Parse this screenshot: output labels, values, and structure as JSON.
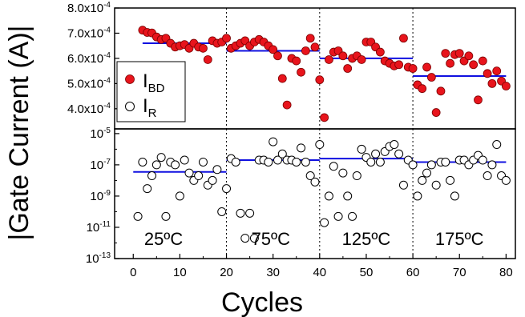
{
  "chart_data": {
    "type": "scatter",
    "xlabel": "Cycles",
    "ylabel": "|Gate Current (A)|",
    "xlim": [
      -4,
      82
    ],
    "x_ticks": [
      "0",
      "10",
      "20",
      "30",
      "40",
      "50",
      "60",
      "70",
      "80"
    ],
    "grid": false,
    "temperature_labels": [
      "25ºC",
      "75ºC",
      "125ºC",
      "175ºC"
    ],
    "dividers_x": [
      20,
      40,
      60
    ],
    "panels": [
      {
        "name": "top",
        "yscale": "linear",
        "ylim": [
          0.00032,
          0.0008
        ],
        "y_tick_labels": [
          "4.0x10",
          "5.0x10",
          "6.0x10",
          "7.0x10",
          "8.0x10"
        ],
        "y_tick_values": [
          0.0004,
          0.0005,
          0.0006,
          0.0007,
          0.0008
        ],
        "y_tick_exponent": "-4",
        "legend": {
          "position": "left",
          "entries": [
            {
              "label": "I",
              "sub": "BD",
              "marker": "filled-circle",
              "color": "#e8141c"
            },
            {
              "label": "I",
              "sub": "R",
              "marker": "open-circle",
              "color": "#000000"
            }
          ]
        },
        "series": [
          {
            "name": "I_BD",
            "marker": "filled-circle",
            "color": "#e8141c",
            "x": [
              2,
              3,
              4,
              5,
              6,
              7,
              8,
              9,
              10,
              11,
              12,
              13,
              14,
              15,
              16,
              17,
              18,
              19,
              20,
              21,
              22,
              23,
              24,
              25,
              26,
              27,
              28,
              29,
              30,
              31,
              32,
              33,
              34,
              35,
              36,
              37,
              38,
              39,
              40,
              41,
              42,
              43,
              44,
              45,
              46,
              47,
              48,
              49,
              50,
              51,
              52,
              53,
              54,
              55,
              56,
              57,
              58,
              59,
              60,
              61,
              62,
              63,
              64,
              65,
              66,
              67,
              68,
              69,
              70,
              71,
              72,
              73,
              74,
              75,
              76,
              77,
              78,
              79,
              80
            ],
            "y": [
              0.000712,
              0.000703,
              0.000701,
              0.000685,
              0.000675,
              0.00068,
              0.00066,
              0.000645,
              0.00065,
              0.000655,
              0.00064,
              0.00066,
              0.000645,
              0.00064,
              0.000595,
              0.00067,
              0.00066,
              0.000665,
              0.00068,
              0.00064,
              0.00065,
              0.00066,
              0.00067,
              0.00065,
              0.000665,
              0.000675,
              0.000665,
              0.00065,
              0.000635,
              0.00061,
              0.00052,
              0.000415,
              0.0006,
              0.00059,
              0.000545,
              0.00063,
              0.00068,
              0.000645,
              0.000515,
              0.000365,
              0.000595,
              0.000625,
              0.00063,
              0.00061,
              0.00056,
              0.0006,
              0.00061,
              0.000595,
              0.000665,
              0.000665,
              0.000645,
              0.000625,
              0.00059,
              0.00058,
              0.00057,
              0.000575,
              0.00068,
              0.000565,
              0.00056,
              0.000495,
              0.00048,
              0.000565,
              0.000525,
              0.000385,
              0.00047,
              0.00062,
              0.00058,
              0.000615,
              0.00062,
              0.00059,
              0.00061,
              0.000575,
              0.000435,
              0.00059,
              0.00054,
              0.0005,
              0.00055,
              0.00051,
              0.00049
            ]
          }
        ],
        "mean_lines": [
          {
            "x": [
              2,
              20
            ],
            "y": 0.00066
          },
          {
            "x": [
              20,
              40
            ],
            "y": 0.00063
          },
          {
            "x": [
              40,
              60
            ],
            "y": 0.0006
          },
          {
            "x": [
              60,
              80
            ],
            "y": 0.00053
          }
        ]
      },
      {
        "name": "bottom",
        "yscale": "log",
        "ylim": [
          1e-13,
          2e-05
        ],
        "y_tick_exponents": [
          "-5",
          "-7",
          "-9",
          "-11",
          "-13"
        ],
        "y_tick_values": [
          1e-05,
          1e-07,
          1e-09,
          1e-11,
          1e-13
        ],
        "series": [
          {
            "name": "I_R",
            "marker": "open-circle",
            "color": "#000000",
            "x": [
              1,
              2,
              3,
              4,
              5,
              6,
              7,
              8,
              9,
              10,
              11,
              12,
              13,
              14,
              15,
              16,
              17,
              18,
              19,
              20,
              21,
              22,
              23,
              24,
              25,
              26,
              27,
              28,
              29,
              30,
              31,
              32,
              33,
              34,
              35,
              36,
              37,
              38,
              39,
              40,
              41,
              42,
              43,
              44,
              45,
              46,
              47,
              48,
              49,
              50,
              51,
              52,
              53,
              54,
              55,
              56,
              57,
              58,
              59,
              60,
              61,
              62,
              63,
              64,
              65,
              66,
              67,
              68,
              69,
              70,
              71,
              72,
              73,
              74,
              75,
              76,
              77,
              78,
              79,
              80
            ],
            "y": [
              5e-11,
              1.5e-07,
              3e-09,
              2e-08,
              1e-07,
              3e-07,
              5e-11,
              1.5e-07,
              1e-07,
              1e-09,
              2e-07,
              3e-08,
              1e-08,
              2e-08,
              1.5e-07,
              5e-09,
              1e-08,
              5e-08,
              1e-10,
              3e-09,
              2.5e-07,
              1.5e-07,
              8e-11,
              2e-12,
              8e-11,
              2e-12,
              2e-07,
              2e-07,
              1.5e-07,
              3e-06,
              2e-07,
              5e-07,
              2e-07,
              2e-07,
              1.5e-07,
              1.2e-06,
              1.5e-07,
              2e-08,
              8e-09,
              2e-06,
              2e-11,
              1e-09,
              8e-08,
              5e-11,
              3e-08,
              1e-09,
              5e-11,
              2e-08,
              1e-06,
              3e-07,
              1.5e-07,
              5e-07,
              1.5e-07,
              7e-07,
              1.5e-06,
              2e-06,
              5e-07,
              5e-09,
              2e-07,
              1e-07,
              1e-09,
              1e-08,
              3e-08,
              1e-07,
              5e-09,
              1.5e-07,
              1.5e-07,
              1e-08,
              1e-09,
              2e-07,
              2e-07,
              1e-07,
              2e-07,
              4e-07,
              2e-07,
              2e-08,
              1e-07,
              2e-06,
              2e-08,
              1e-08
            ]
          }
        ],
        "mean_lines": [
          {
            "x": [
              0,
              20
            ],
            "y": 3.5e-08
          },
          {
            "x": [
              20,
              40
            ],
            "y": 2e-07
          },
          {
            "x": [
              40,
              60
            ],
            "y": 2.5e-07
          },
          {
            "x": [
              60,
              80
            ],
            "y": 1.5e-07
          }
        ]
      }
    ]
  }
}
